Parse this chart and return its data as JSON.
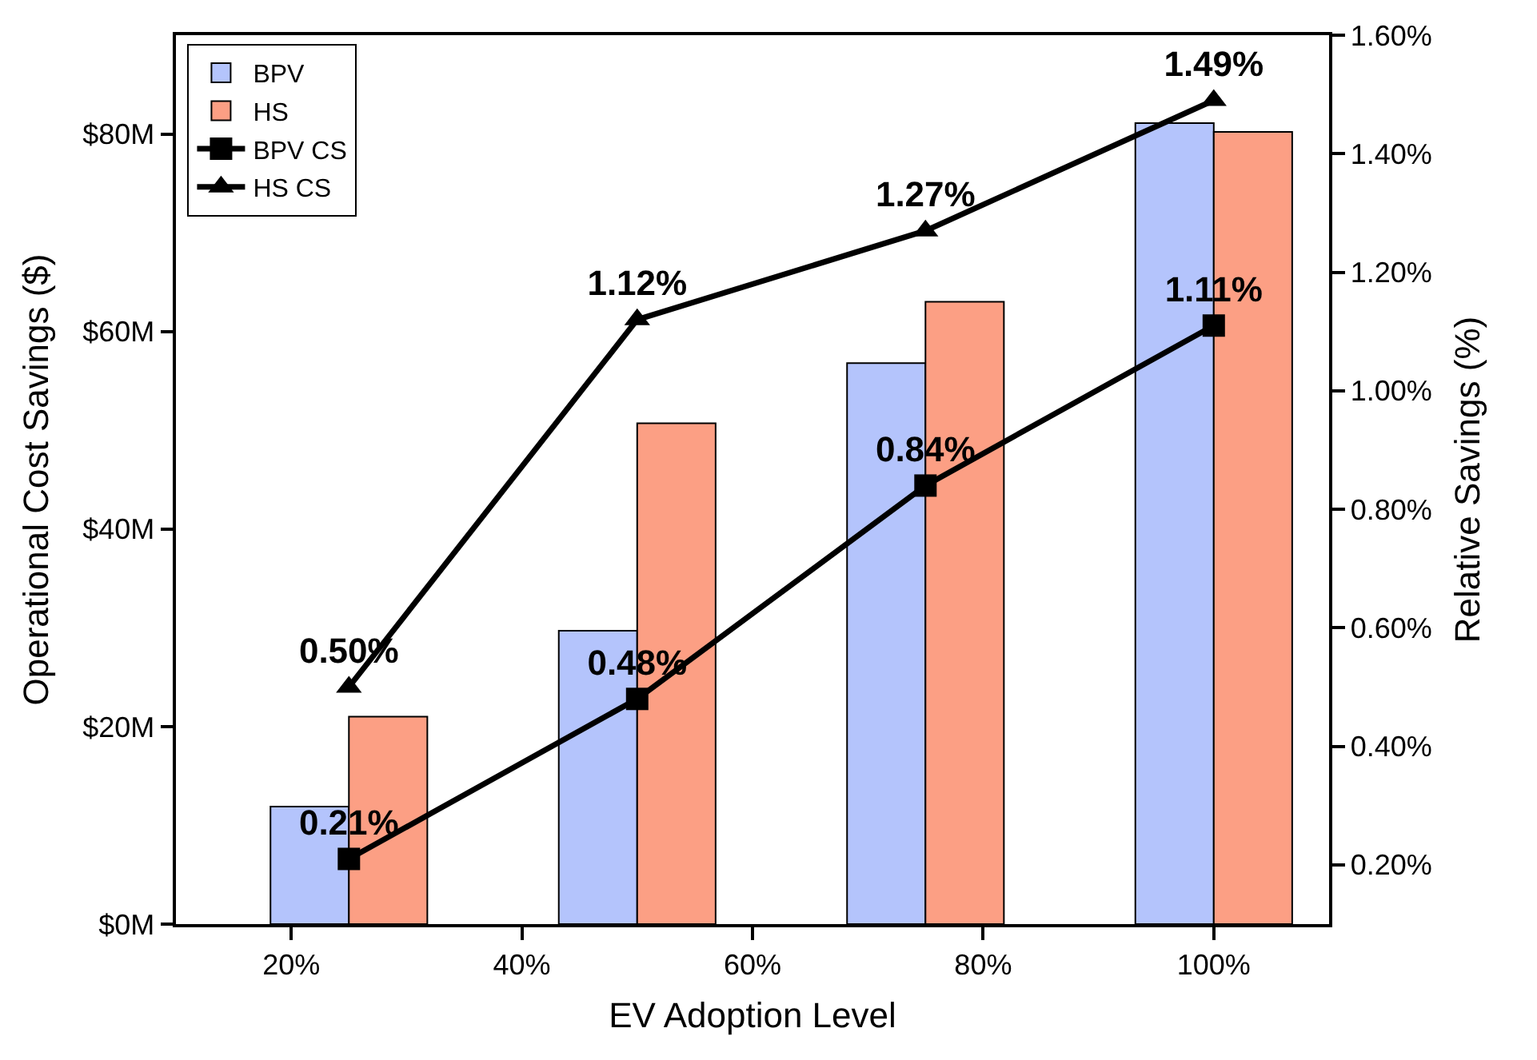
{
  "chart_data": {
    "type": "bar",
    "xlabel": "EV Adoption Level",
    "ylabel": "Operational Cost Savings ($)",
    "y2label": "Relative Savings (%)",
    "x": [
      25,
      50,
      75,
      100
    ],
    "xlim": [
      10,
      110
    ],
    "xticks": [
      {
        "value": 20,
        "label": "20%"
      },
      {
        "value": 40,
        "label": "40%"
      },
      {
        "value": 60,
        "label": "60%"
      },
      {
        "value": 80,
        "label": "80%"
      },
      {
        "value": 100,
        "label": "100%"
      }
    ],
    "ylim": [
      0,
      90
    ],
    "yticks": [
      {
        "value": 0,
        "label": "$0M"
      },
      {
        "value": 20,
        "label": "$20M"
      },
      {
        "value": 40,
        "label": "$40M"
      },
      {
        "value": 60,
        "label": "$60M"
      },
      {
        "value": 80,
        "label": "$80M"
      }
    ],
    "y2lim": [
      0.1,
      1.6
    ],
    "y2ticks": [
      {
        "value": 0.2,
        "label": "0.20%"
      },
      {
        "value": 0.4,
        "label": "0.40%"
      },
      {
        "value": 0.6,
        "label": "0.60%"
      },
      {
        "value": 0.8,
        "label": "0.80%"
      },
      {
        "value": 1.0,
        "label": "1.00%"
      },
      {
        "value": 1.2,
        "label": "1.20%"
      },
      {
        "value": 1.4,
        "label": "1.40%"
      },
      {
        "value": 1.6,
        "label": "1.60%"
      }
    ],
    "series": [
      {
        "name": "BPV",
        "color": "#b4c4fc",
        "values": [
          11.9,
          29.7,
          56.8,
          81.1
        ]
      },
      {
        "name": "HS",
        "color": "#fc9f84",
        "values": [
          21.0,
          50.7,
          63.0,
          80.2
        ]
      },
      {
        "name": "BPV CS",
        "type": "line",
        "axis": "y2",
        "color": "#000000",
        "marker": "square",
        "values": [
          0.21,
          0.48,
          0.84,
          1.11
        ],
        "value_labels": [
          "0.21%",
          "0.48%",
          "0.84%",
          "1.11%"
        ]
      },
      {
        "name": "HS CS",
        "type": "line",
        "axis": "y2",
        "color": "#000000",
        "marker": "triangle",
        "values": [
          0.5,
          1.12,
          1.27,
          1.49
        ],
        "value_labels": [
          "0.50%",
          "1.12%",
          "1.27%",
          "1.49%"
        ]
      }
    ],
    "legend": "top left",
    "grid": false
  }
}
